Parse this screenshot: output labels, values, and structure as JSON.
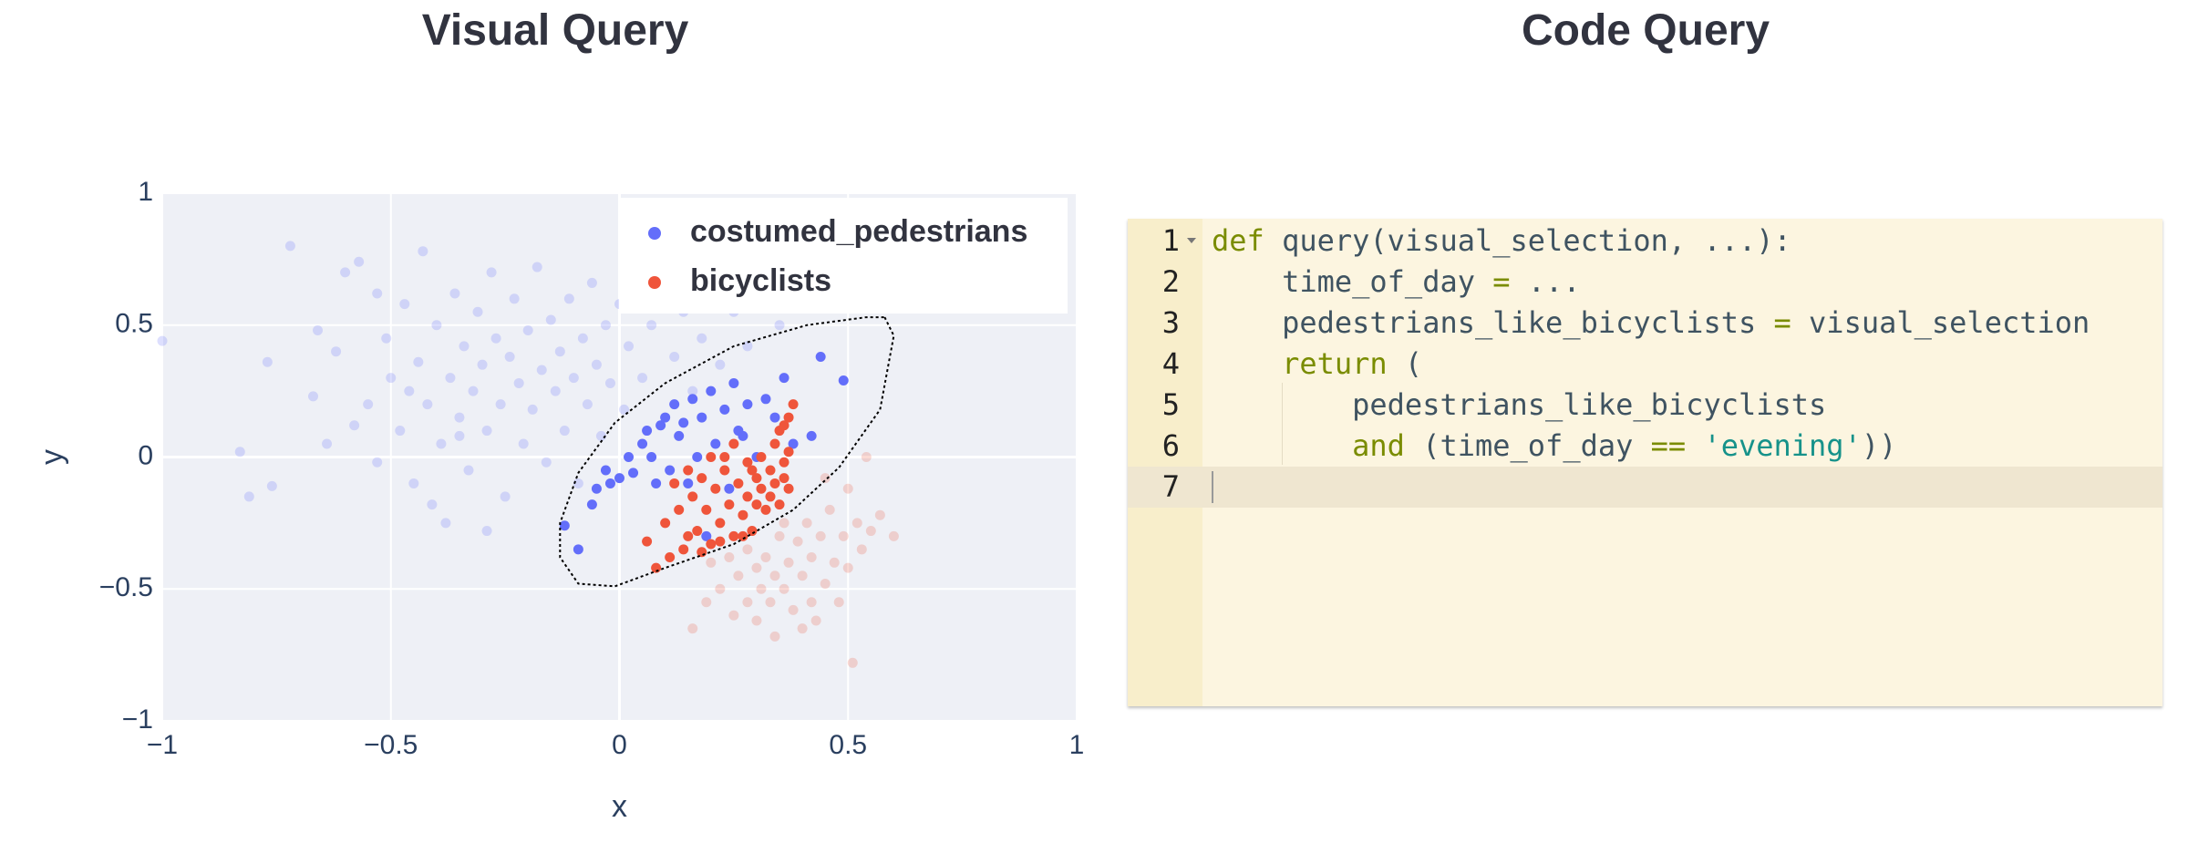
{
  "chart_data": {
    "type": "scatter",
    "title": "Visual Query",
    "xlabel": "x",
    "ylabel": "y",
    "xlim": [
      -1,
      1
    ],
    "ylim": [
      -1,
      1
    ],
    "xticks": [
      {
        "value": -1,
        "label": "−1"
      },
      {
        "value": -0.5,
        "label": "−0.5"
      },
      0,
      0.5,
      1
    ],
    "yticks": [
      {
        "value": -1,
        "label": "−1"
      },
      {
        "value": -0.5,
        "label": "−0.5"
      },
      0,
      0.5,
      1
    ],
    "grid": true,
    "legend": "top-right",
    "background": "#eef0f6",
    "series": [
      {
        "name": "costumed_pedestrians",
        "color": "#636efa",
        "points": {
          "x": [
            -0.12,
            -0.09,
            -0.06,
            -0.03,
            -0.02,
            0.0,
            0.02,
            0.03,
            0.05,
            0.06,
            0.07,
            0.08,
            0.09,
            0.1,
            0.11,
            0.12,
            0.13,
            0.14,
            0.15,
            0.16,
            0.17,
            0.18,
            0.19,
            0.2,
            0.21,
            0.23,
            0.24,
            0.25,
            0.26,
            0.28,
            0.3,
            0.32,
            0.34,
            0.36,
            0.38,
            0.42,
            0.44,
            0.49,
            -0.05,
            0.27
          ],
          "y": [
            -0.26,
            -0.35,
            -0.18,
            -0.05,
            -0.1,
            -0.08,
            0.0,
            -0.06,
            0.05,
            0.1,
            0.0,
            -0.1,
            0.12,
            0.15,
            -0.05,
            0.2,
            0.08,
            0.13,
            -0.1,
            0.22,
            0.0,
            0.15,
            -0.3,
            0.25,
            0.05,
            0.18,
            -0.12,
            0.28,
            0.1,
            0.2,
            0.0,
            0.22,
            0.15,
            0.3,
            0.05,
            0.08,
            0.38,
            0.29,
            -0.12,
            0.08
          ]
        },
        "faded_points": {
          "x": [
            -1.0,
            -0.83,
            -0.81,
            -0.76,
            -0.72,
            -0.77,
            -0.67,
            -0.64,
            -0.62,
            -0.6,
            -0.57,
            -0.55,
            -0.53,
            -0.51,
            -0.5,
            -0.48,
            -0.47,
            -0.45,
            -0.44,
            -0.43,
            -0.42,
            -0.4,
            -0.39,
            -0.38,
            -0.37,
            -0.36,
            -0.35,
            -0.34,
            -0.33,
            -0.32,
            -0.31,
            -0.3,
            -0.29,
            -0.28,
            -0.27,
            -0.26,
            -0.25,
            -0.24,
            -0.23,
            -0.22,
            -0.21,
            -0.2,
            -0.19,
            -0.18,
            -0.17,
            -0.16,
            -0.15,
            -0.14,
            -0.13,
            -0.12,
            -0.11,
            -0.1,
            -0.09,
            -0.08,
            -0.07,
            -0.06,
            -0.05,
            -0.04,
            -0.03,
            -0.02,
            0.0,
            0.01,
            0.02,
            0.04,
            0.05,
            0.07,
            0.09,
            0.1,
            0.12,
            0.14,
            0.16,
            0.18,
            0.2,
            0.22,
            0.25,
            0.28,
            0.3,
            0.35,
            -0.58,
            -0.46,
            -0.41,
            -0.53,
            -0.66,
            -0.29,
            -0.35
          ],
          "y": [
            0.44,
            0.02,
            -0.15,
            -0.11,
            0.8,
            0.36,
            0.23,
            0.05,
            0.4,
            0.7,
            0.74,
            0.2,
            -0.02,
            0.45,
            0.3,
            0.1,
            0.58,
            -0.1,
            0.36,
            0.78,
            0.2,
            0.5,
            0.05,
            -0.25,
            0.3,
            0.62,
            0.15,
            0.42,
            -0.05,
            0.25,
            0.55,
            0.35,
            0.1,
            0.7,
            0.45,
            0.2,
            -0.15,
            0.38,
            0.6,
            0.28,
            0.05,
            0.48,
            0.18,
            0.72,
            0.33,
            -0.02,
            0.52,
            0.25,
            0.4,
            0.1,
            0.6,
            0.3,
            -0.1,
            0.45,
            0.2,
            0.66,
            0.35,
            0.08,
            0.5,
            0.28,
            0.58,
            0.18,
            0.42,
            0.68,
            0.3,
            0.5,
            0.12,
            0.62,
            0.38,
            0.55,
            0.25,
            0.45,
            0.7,
            0.35,
            0.55,
            0.42,
            0.6,
            0.5,
            0.12,
            0.25,
            -0.18,
            0.62,
            0.48,
            -0.28,
            0.08
          ]
        }
      },
      {
        "name": "bicyclists",
        "color": "#ef553b",
        "points": {
          "x": [
            0.06,
            0.08,
            0.1,
            0.12,
            0.13,
            0.14,
            0.15,
            0.16,
            0.17,
            0.18,
            0.19,
            0.2,
            0.2,
            0.21,
            0.22,
            0.23,
            0.24,
            0.25,
            0.25,
            0.26,
            0.27,
            0.28,
            0.28,
            0.29,
            0.3,
            0.3,
            0.31,
            0.31,
            0.32,
            0.33,
            0.33,
            0.34,
            0.34,
            0.35,
            0.35,
            0.36,
            0.36,
            0.37,
            0.37,
            0.38,
            0.36,
            0.15,
            0.18,
            0.22,
            0.27,
            0.11,
            0.23,
            0.29,
            0.37
          ],
          "y": [
            -0.32,
            -0.42,
            -0.25,
            -0.1,
            -0.2,
            -0.35,
            -0.05,
            -0.15,
            -0.28,
            -0.08,
            -0.2,
            0.0,
            -0.33,
            -0.12,
            -0.25,
            -0.05,
            -0.18,
            -0.3,
            0.05,
            -0.1,
            -0.22,
            -0.02,
            -0.15,
            -0.28,
            -0.08,
            -0.18,
            0.0,
            -0.12,
            -0.2,
            -0.05,
            -0.15,
            0.05,
            -0.1,
            -0.18,
            0.1,
            -0.02,
            -0.08,
            0.15,
            -0.12,
            0.2,
            0.12,
            -0.3,
            -0.36,
            -0.32,
            -0.3,
            -0.38,
            0.0,
            -0.05,
            0.02
          ]
        },
        "faded_points": {
          "x": [
            0.2,
            0.22,
            0.24,
            0.25,
            0.26,
            0.28,
            0.28,
            0.3,
            0.3,
            0.31,
            0.32,
            0.33,
            0.34,
            0.34,
            0.35,
            0.36,
            0.37,
            0.38,
            0.39,
            0.4,
            0.41,
            0.42,
            0.42,
            0.43,
            0.44,
            0.45,
            0.46,
            0.47,
            0.48,
            0.49,
            0.5,
            0.5,
            0.52,
            0.53,
            0.55,
            0.57,
            0.6,
            0.51,
            0.16,
            0.19,
            0.36,
            0.4,
            0.45,
            0.54
          ],
          "y": [
            -0.4,
            -0.5,
            -0.38,
            -0.6,
            -0.45,
            -0.35,
            -0.55,
            -0.42,
            -0.62,
            -0.5,
            -0.38,
            -0.55,
            -0.45,
            -0.68,
            -0.3,
            -0.5,
            -0.4,
            -0.58,
            -0.32,
            -0.45,
            -0.25,
            -0.55,
            -0.38,
            -0.62,
            -0.3,
            -0.48,
            -0.2,
            -0.4,
            -0.55,
            -0.3,
            -0.12,
            -0.42,
            -0.25,
            -0.35,
            -0.28,
            -0.22,
            -0.3,
            -0.78,
            -0.65,
            -0.55,
            -0.25,
            -0.65,
            -0.08,
            0.0
          ]
        }
      }
    ],
    "lasso": {
      "x": [
        0.58,
        0.6,
        0.57,
        0.48,
        0.38,
        0.25,
        0.1,
        -0.01,
        -0.09,
        -0.13,
        -0.13,
        -0.09,
        -0.01,
        0.1,
        0.25,
        0.41,
        0.54
      ],
      "y": [
        0.53,
        0.46,
        0.18,
        -0.04,
        -0.2,
        -0.33,
        -0.42,
        -0.49,
        -0.48,
        -0.38,
        -0.25,
        -0.06,
        0.13,
        0.28,
        0.42,
        0.5,
        0.53
      ]
    }
  },
  "code_query": {
    "title": "Code Query",
    "line_numbers": [
      1,
      2,
      3,
      4,
      5,
      6,
      7
    ],
    "active_line": 7,
    "lines": [
      [
        {
          "text": "def",
          "color": "#7a8c00"
        },
        {
          "text": " query(visual_selection, ...):",
          "color": "#3f5361"
        }
      ],
      [
        {
          "text": "    time_of_day ",
          "color": "#3f5361"
        },
        {
          "text": "=",
          "color": "#7a8c00"
        },
        {
          "text": " ...",
          "color": "#3f5361"
        }
      ],
      [
        {
          "text": "    pedestrians_like_bicyclists ",
          "color": "#3f5361"
        },
        {
          "text": "=",
          "color": "#7a8c00"
        },
        {
          "text": " visual_selection",
          "color": "#3f5361"
        }
      ],
      [
        {
          "text": "    return",
          "color": "#7a8c00"
        },
        {
          "text": " (",
          "color": "#3f5361"
        }
      ],
      [
        {
          "text": "        pedestrians_like_bicyclists",
          "color": "#3f5361"
        }
      ],
      [
        {
          "text": "        and",
          "color": "#7a8c00"
        },
        {
          "text": " (time_of_day ",
          "color": "#3f5361"
        },
        {
          "text": "==",
          "color": "#7a8c00"
        },
        {
          "text": " ",
          "color": "#3f5361"
        },
        {
          "text": "'evening'",
          "color": "#16928a"
        },
        {
          "text": "))",
          "color": "#3f5361"
        }
      ],
      []
    ]
  }
}
